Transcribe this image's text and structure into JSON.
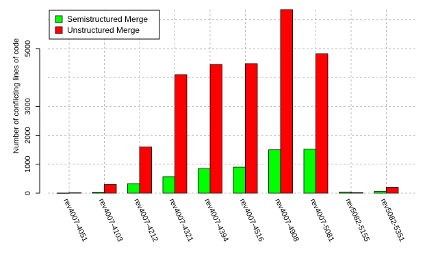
{
  "chart_data": {
    "type": "bar",
    "title": "",
    "xlabel": "",
    "ylabel": "Number of conflicting lines of code",
    "categories": [
      "rev4007-4051",
      "rev4007-4103",
      "rev4007-4212",
      "rev4007-4321",
      "rev4007-4394",
      "rev4007-4516",
      "rev4007-4908",
      "rev4007-5081",
      "rev5082-5155",
      "rev5082-5351"
    ],
    "series": [
      {
        "name": "Semistructured Merge",
        "color": "#00ff00",
        "values": [
          5,
          35,
          330,
          570,
          850,
          900,
          1500,
          1520,
          40,
          65
        ]
      },
      {
        "name": "Unstructured Merge",
        "color": "#ff0000",
        "values": [
          15,
          300,
          1600,
          4100,
          4450,
          4480,
          6350,
          4820,
          20,
          200
        ]
      }
    ],
    "yticks": [
      0,
      1000,
      2000,
      3000,
      5000
    ],
    "ylim": [
      0,
      6350
    ],
    "grid": true,
    "legend_position": "top-left"
  }
}
